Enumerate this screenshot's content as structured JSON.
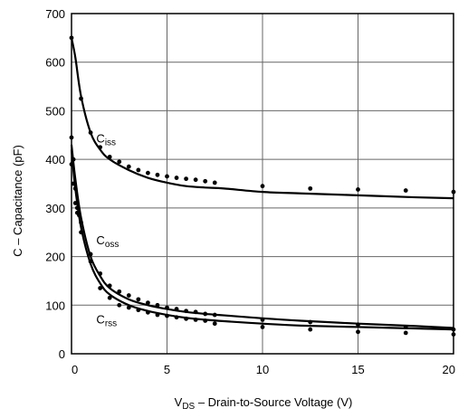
{
  "chart_data": {
    "type": "line",
    "xlabel": {
      "prefix": "V",
      "sub": "DS",
      "rest": " – Drain-to-Source Voltage (V)"
    },
    "ylabel": "C – Capacitance (pF)",
    "xlim": [
      0,
      20
    ],
    "ylim": [
      0,
      700
    ],
    "xticks": [
      0,
      5,
      10,
      15,
      20
    ],
    "yticks": [
      0,
      100,
      200,
      300,
      400,
      500,
      600,
      700
    ],
    "grid": true,
    "legend": "none",
    "series": [
      {
        "name": "Ciss",
        "label_main": "C",
        "label_sub": "iss",
        "curve": [
          [
            0,
            650
          ],
          [
            0.2,
            610
          ],
          [
            0.5,
            530
          ],
          [
            1,
            455
          ],
          [
            1.5,
            420
          ],
          [
            2,
            400
          ],
          [
            3,
            378
          ],
          [
            4,
            362
          ],
          [
            5,
            352
          ],
          [
            6,
            345
          ],
          [
            7,
            342
          ],
          [
            8,
            340
          ],
          [
            10,
            333
          ],
          [
            12,
            330
          ],
          [
            15,
            326
          ],
          [
            18,
            322
          ],
          [
            20,
            320
          ]
        ],
        "points": [
          [
            0,
            650
          ],
          [
            0.5,
            525
          ],
          [
            1,
            455
          ],
          [
            1.5,
            425
          ],
          [
            2,
            405
          ],
          [
            2.5,
            395
          ],
          [
            3,
            385
          ],
          [
            3.5,
            378
          ],
          [
            4,
            372
          ],
          [
            4.5,
            368
          ],
          [
            5,
            365
          ],
          [
            5.5,
            362
          ],
          [
            6,
            360
          ],
          [
            6.5,
            358
          ],
          [
            7,
            355
          ],
          [
            7.5,
            352
          ],
          [
            10,
            345
          ],
          [
            12.5,
            340
          ],
          [
            15,
            338
          ],
          [
            17.5,
            336
          ],
          [
            20,
            333
          ]
        ]
      },
      {
        "name": "Coss",
        "label_main": "C",
        "label_sub": "oss",
        "curve": [
          [
            0,
            430
          ],
          [
            0.2,
            360
          ],
          [
            0.5,
            280
          ],
          [
            1,
            200
          ],
          [
            1.5,
            160
          ],
          [
            2,
            135
          ],
          [
            3,
            112
          ],
          [
            4,
            100
          ],
          [
            5,
            92
          ],
          [
            6,
            86
          ],
          [
            7,
            82
          ],
          [
            8,
            79
          ],
          [
            10,
            73
          ],
          [
            12,
            68
          ],
          [
            15,
            62
          ],
          [
            18,
            57
          ],
          [
            20,
            53
          ]
        ],
        "points": [
          [
            0,
            445
          ],
          [
            0.1,
            400
          ],
          [
            0.2,
            340
          ],
          [
            0.3,
            300
          ],
          [
            0.4,
            285
          ],
          [
            0.5,
            270
          ],
          [
            1,
            205
          ],
          [
            1.5,
            165
          ],
          [
            2,
            140
          ],
          [
            2.5,
            128
          ],
          [
            3,
            120
          ],
          [
            3.5,
            112
          ],
          [
            4,
            105
          ],
          [
            4.5,
            100
          ],
          [
            5,
            95
          ],
          [
            5.5,
            92
          ],
          [
            6,
            88
          ],
          [
            6.5,
            86
          ],
          [
            7,
            82
          ],
          [
            7.5,
            80
          ],
          [
            10,
            70
          ],
          [
            12.5,
            65
          ],
          [
            15,
            60
          ],
          [
            17.5,
            55
          ],
          [
            20,
            50
          ]
        ]
      },
      {
        "name": "Crss",
        "label_main": "C",
        "label_sub": "rss",
        "curve": [
          [
            0,
            420
          ],
          [
            0.2,
            340
          ],
          [
            0.5,
            260
          ],
          [
            1,
            185
          ],
          [
            1.5,
            145
          ],
          [
            2,
            122
          ],
          [
            3,
            100
          ],
          [
            4,
            88
          ],
          [
            5,
            80
          ],
          [
            6,
            74
          ],
          [
            7,
            70
          ],
          [
            8,
            67
          ],
          [
            10,
            62
          ],
          [
            12,
            58
          ],
          [
            15,
            55
          ],
          [
            18,
            52
          ],
          [
            20,
            50
          ]
        ],
        "points": [
          [
            0,
            390
          ],
          [
            0.1,
            350
          ],
          [
            0.2,
            310
          ],
          [
            0.3,
            290
          ],
          [
            0.5,
            250
          ],
          [
            1,
            190
          ],
          [
            1.5,
            135
          ],
          [
            2,
            115
          ],
          [
            2.5,
            100
          ],
          [
            3,
            95
          ],
          [
            3.5,
            90
          ],
          [
            4,
            85
          ],
          [
            4.5,
            80
          ],
          [
            5,
            78
          ],
          [
            5.5,
            75
          ],
          [
            6,
            72
          ],
          [
            6.5,
            70
          ],
          [
            7,
            68
          ],
          [
            7.5,
            62
          ],
          [
            10,
            55
          ],
          [
            12.5,
            50
          ],
          [
            15,
            45
          ],
          [
            17.5,
            43
          ],
          [
            20,
            40
          ]
        ]
      }
    ]
  }
}
